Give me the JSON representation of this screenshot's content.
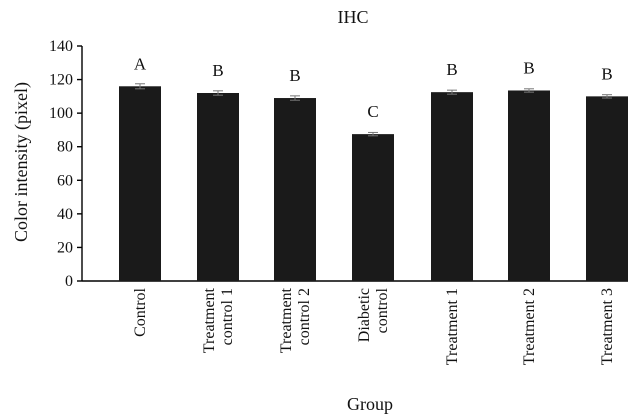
{
  "chart_data": {
    "type": "bar",
    "title": "IHC",
    "xlabel": "Group",
    "ylabel": "Color intensity (pixel)",
    "ylim": [
      0,
      140
    ],
    "yticks": [
      0,
      20,
      40,
      60,
      80,
      100,
      120,
      140
    ],
    "grid": false,
    "categories": [
      [
        "Control"
      ],
      [
        "Treatment",
        "control 1"
      ],
      [
        "Treatment",
        "control 2"
      ],
      [
        "Diabetic",
        "control"
      ],
      [
        "Treatment 1"
      ],
      [
        "Treatment 2"
      ],
      [
        "Treatment 3"
      ]
    ],
    "values": [
      116,
      112,
      109,
      87.5,
      112.5,
      113.5,
      110
    ],
    "errors": [
      1.5,
      1.3,
      1.3,
      1.0,
      1.2,
      1.0,
      1.0
    ],
    "significance_labels": [
      "A",
      "B",
      "B",
      "C",
      "B",
      "B",
      "B"
    ],
    "bar_color": "#1a1a1a"
  }
}
